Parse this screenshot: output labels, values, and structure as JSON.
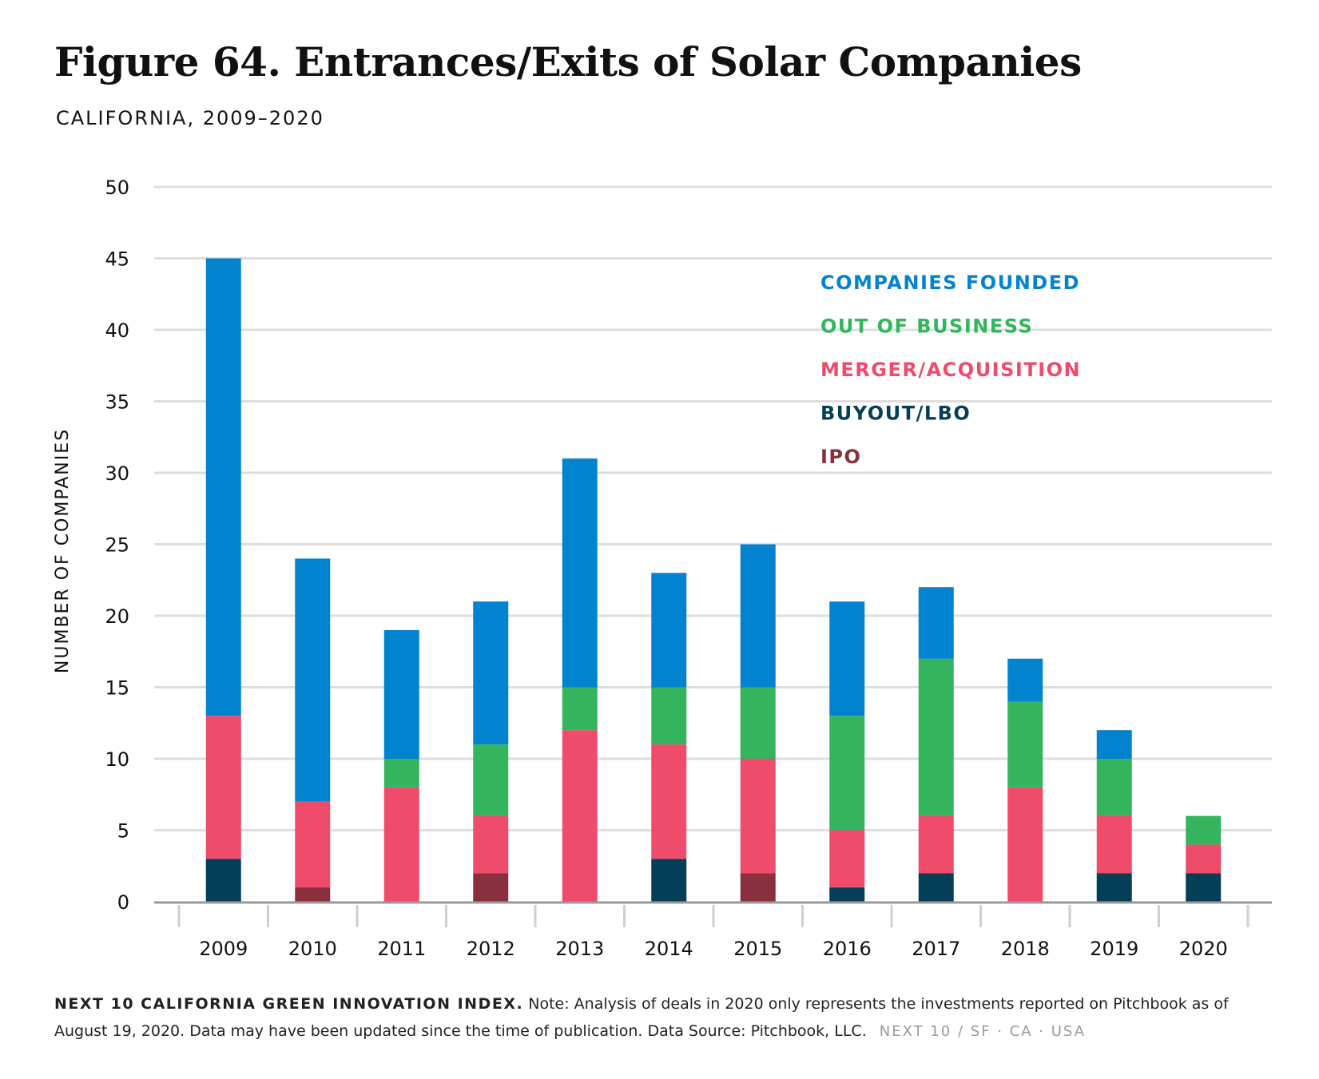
{
  "title": "Figure 64. Entrances/Exits of Solar Companies",
  "subtitle": "CALIFORNIA, 2009–2020",
  "footer": {
    "source": "NEXT 10 CALIFORNIA GREEN INNOVATION INDEX.",
    "note": "Note: Analysis of deals in 2020 only represents the investments reported on Pitchbook as of August 19, 2020. Data may have been updated since the time of publication. Data Source: Pitchbook, LLC.",
    "brand": "NEXT 10 / SF · CA · USA"
  },
  "colors": {
    "companies_founded": "#0283cf",
    "out_of_business": "#33b45d",
    "merger_acquisition": "#ef4b6b",
    "buyout_lbo": "#043f57",
    "ipo": "#8a2f3e",
    "grid": "#dedede",
    "axis": "#999999"
  },
  "chart_data": {
    "type": "bar",
    "stacked": true,
    "title": "Figure 64. Entrances/Exits of Solar Companies",
    "subtitle": "CALIFORNIA, 2009–2020",
    "xlabel": "",
    "ylabel": "NUMBER OF COMPANIES",
    "ylim": [
      0,
      50
    ],
    "yticks": [
      0,
      5,
      10,
      15,
      20,
      25,
      30,
      35,
      40,
      45,
      50
    ],
    "grid": true,
    "legend": "top-right",
    "categories": [
      "2009",
      "2010",
      "2011",
      "2012",
      "2013",
      "2014",
      "2015",
      "2016",
      "2017",
      "2018",
      "2019",
      "2020"
    ],
    "series": [
      {
        "name": "BUYOUT/LBO",
        "key": "buyout_lbo",
        "values": [
          3,
          0,
          0,
          0,
          0,
          3,
          0,
          1,
          2,
          0,
          2,
          2
        ]
      },
      {
        "name": "IPO",
        "key": "ipo",
        "values": [
          0,
          1,
          0,
          2,
          0,
          0,
          2,
          0,
          0,
          0,
          0,
          0
        ]
      },
      {
        "name": "MERGER/ACQUISITION",
        "key": "merger_acquisition",
        "values": [
          10,
          6,
          8,
          4,
          12,
          8,
          8,
          4,
          4,
          8,
          4,
          2
        ]
      },
      {
        "name": "OUT OF BUSINESS",
        "key": "out_of_business",
        "values": [
          0,
          0,
          2,
          5,
          3,
          4,
          5,
          8,
          11,
          6,
          4,
          2
        ]
      },
      {
        "name": "COMPANIES FOUNDED",
        "key": "companies_founded",
        "values": [
          32,
          17,
          9,
          10,
          16,
          8,
          10,
          8,
          5,
          3,
          2,
          0
        ]
      }
    ],
    "legend_order": [
      "companies_founded",
      "out_of_business",
      "merger_acquisition",
      "buyout_lbo",
      "ipo"
    ]
  }
}
